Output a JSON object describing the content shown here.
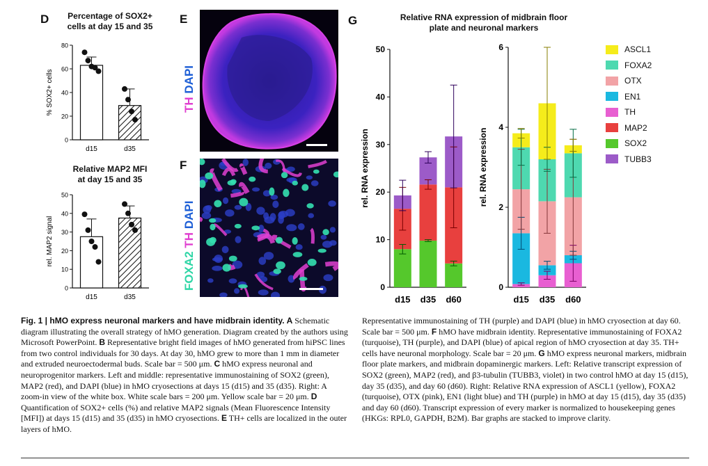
{
  "panels": {
    "d": {
      "letter": "D",
      "chart1_title_lines": [
        "Percentage of SOX2+",
        "cells at day 15 and 35"
      ],
      "chart2_title_lines": [
        "Relative MAP2 MFI",
        "at day 15 and 35"
      ]
    },
    "e": {
      "letter": "E",
      "stain_label": [
        "TH",
        "DAPI"
      ]
    },
    "f": {
      "letter": "F",
      "stain_label": [
        "FOXA2",
        "TH",
        "DAPI"
      ]
    },
    "g": {
      "letter": "G",
      "title_lines": [
        "Relative RNA expression of midbrain floor",
        "plate and neuronal markers"
      ]
    }
  },
  "chart_data": [
    {
      "type": "bar",
      "panel": "D-top",
      "title": "Percentage of SOX2+ cells at day 15 and 35",
      "categories": [
        "d15",
        "d35"
      ],
      "values": [
        63,
        29
      ],
      "error": [
        7,
        14
      ],
      "points": [
        [
          74,
          67,
          62,
          61,
          58
        ],
        [
          43,
          34,
          24,
          17
        ]
      ],
      "ylabel": "% SOX2+ cells",
      "ylim": [
        0,
        80
      ],
      "yticks": [
        0,
        20,
        40,
        60,
        80
      ],
      "bar_fills": [
        "solid-white",
        "hatched"
      ]
    },
    {
      "type": "bar",
      "panel": "D-bottom",
      "title": "Relative MAP2 MFI at day 15 and 35",
      "categories": [
        "d15",
        "d35"
      ],
      "values": [
        27.5,
        37.5
      ],
      "error": [
        9.5,
        6.5
      ],
      "points": [
        [
          39.5,
          31,
          25,
          22,
          14
        ],
        [
          45,
          40,
          34,
          31
        ]
      ],
      "ylabel": "rel. MAP2 signal",
      "ylim": [
        0,
        50
      ],
      "yticks": [
        0,
        10,
        20,
        30,
        40,
        50
      ],
      "bar_fills": [
        "solid-white",
        "hatched"
      ]
    },
    {
      "type": "bar",
      "stacked": true,
      "panel": "G-left",
      "categories": [
        "d15",
        "d35",
        "d60"
      ],
      "ylabel": "rel. RNA expression",
      "ylim": [
        0,
        50
      ],
      "yticks": [
        0,
        10,
        20,
        30,
        40,
        50
      ],
      "series": [
        {
          "name": "SOX2",
          "color": "#55c82c",
          "values": [
            8,
            9.8,
            5
          ],
          "error": [
            1,
            0.2,
            0.5
          ]
        },
        {
          "name": "MAP2",
          "color": "#e8403e",
          "values": [
            8.5,
            11.8,
            16
          ],
          "error": [
            4.5,
            1,
            8.5
          ]
        },
        {
          "name": "TUBB3",
          "color": "#9c5bc8",
          "values": [
            2.8,
            5.7,
            10.7
          ],
          "error": [
            3.2,
            1.2,
            10.8
          ]
        }
      ]
    },
    {
      "type": "bar",
      "stacked": true,
      "panel": "G-right",
      "categories": [
        "d15",
        "d35",
        "d60"
      ],
      "ylabel": "rel. RNA expression",
      "ylim": [
        0,
        6
      ],
      "yticks": [
        0,
        2,
        4,
        6
      ],
      "series": [
        {
          "name": "TH",
          "color": "#e85fd1",
          "values": [
            0.08,
            0.3,
            0.6
          ],
          "error": [
            0.03,
            0.1,
            0.45
          ]
        },
        {
          "name": "EN1",
          "color": "#1ab8e0",
          "values": [
            1.27,
            0.25,
            0.2
          ],
          "error": [
            0.4,
            0.1,
            0.1
          ]
        },
        {
          "name": "OTX",
          "color": "#f2a3a6",
          "values": [
            1.1,
            1.6,
            1.45
          ],
          "error": [
            1.0,
            0.8,
            1.45
          ]
        },
        {
          "name": "FOXA2",
          "color": "#4ed9b0",
          "values": [
            1.05,
            1.05,
            1.1
          ],
          "error": [
            0.45,
            0.3,
            0.6
          ]
        },
        {
          "name": "ASCL1",
          "color": "#f5ec1b",
          "values": [
            0.35,
            1.4,
            0.2
          ],
          "error": [
            0.12,
            1.4,
            0.15
          ]
        }
      ]
    }
  ],
  "legend": [
    "ASCL1",
    "FOXA2",
    "OTX",
    "EN1",
    "TH",
    "MAP2",
    "SOX2",
    "TUBB3"
  ],
  "legend_colors": [
    "#f5ec1b",
    "#4ed9b0",
    "#f2a3a6",
    "#1ab8e0",
    "#e85fd1",
    "#e8403e",
    "#55c82c",
    "#9c5bc8"
  ],
  "caption_left": {
    "bold": "Fig. 1 | hMO express neuronal markers and have midbrain identity.",
    "p1": " ",
    "a": "A",
    "t1": " Schematic diagram illustrating the overall strategy of hMO generation. Diagram created by the authors using Microsoft PowerPoint. ",
    "b": "B",
    "t2": " Representative bright field images of hMO generated from hiPSC lines from two control individuals for 30 days. At day 30, hMO grew to more than 1 mm in diameter and extruded neuroectodermal buds. Scale bar = 500 μm. ",
    "c": "C",
    "t3": " hMO express neuronal and neuroprogenitor markers. Left and middle: representative immunostaining of SOX2 (green), MAP2 (red), and DAPI (blue) in hMO cryosections at days 15 (d15) and 35 (d35). Right: A zoom-in view of the white box. White scale bars = 200 μm. Yellow scale bar = 20 μm. ",
    "d": "D",
    "t4": " Quantification of SOX2+ cells (%) and relative MAP2 signals (Mean Fluorescence Intensity [MFI]) at days 15 (d15) and 35 (d35) in hMO cryosections. ",
    "e": "E",
    "t5": " TH+ cells are localized in the outer layers of hMO."
  },
  "caption_right": {
    "t1": "Representative immunostaining of TH (purple) and DAPI (blue) in hMO cryosection at day 60. Scale bar = 500 μm. ",
    "f": "F",
    "t2": " hMO have midbrain identity. Representative immunostaining of FOXA2 (turquoise), TH (purple), and DAPI (blue) of apical region of hMO cryosection at day 35. TH+ cells have neuronal morphology. Scale bar = 20 μm. ",
    "g": "G",
    "t3": " hMO express neuronal markers, midbrain floor plate markers, and midbrain dopaminergic markers. Left: Relative transcript expression of SOX2 (green), MAP2 (red), and β3-tubulin (TUBB3, violet) in two control hMO at day 15 (d15), day 35 (d35), and day 60 (d60). Right: Relative RNA expression of ASCL1 (yellow), FOXA2 (turquoise), OTX (pink), EN1 (light blue) and TH (purple) in hMO at day 15 (d15), day 35 (d35) and day 60 (d60). Transcript expression of every marker is normalized to housekeeping genes (HKGs: RPL0, GAPDH, B2M). Bar graphs are stacked to improve clarity."
  }
}
